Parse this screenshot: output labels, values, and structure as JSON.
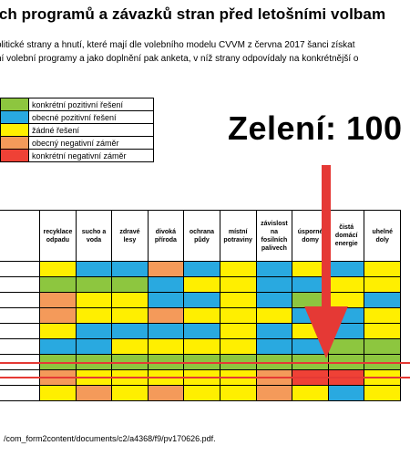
{
  "title": "ích programů a závazků stran před letošními volbam",
  "intro": [
    "olitické strany a hnutí, které mají dle volebního modelu CVVM z června 2017 šanci získat",
    "ní volební programy a jako doplnění pak anketa, v níž strany odpovídaly na konkrétnější o"
  ],
  "legend": [
    {
      "color": "#8dc63f",
      "label": "konkrétní pozitivní řešení"
    },
    {
      "color": "#29a9e0",
      "label": "obecné pozitivní řešení"
    },
    {
      "color": "#ffef00",
      "label": "žádné řešení"
    },
    {
      "color": "#f49a5a",
      "label": "obecný negativní záměr"
    },
    {
      "color": "#ef4136",
      "label": "konkrétní negativní záměr"
    }
  ],
  "caption": "Zelení: 100",
  "colors": {
    "G": "#8dc63f",
    "B": "#29a9e0",
    "Y": "#ffef00",
    "O": "#f49a5a",
    "R": "#ef4136",
    "accent": "#e53935"
  },
  "columns": [
    "recyklace odpadu",
    "sucho a voda",
    "zdravé lesy",
    "divoká příroda",
    "ochrana půdy",
    "místní potraviny",
    "závislost na fosilních palivech",
    "úsporné domy",
    "čistá domácí energie",
    "uhelné doly"
  ],
  "rows": [
    [
      "Y",
      "B",
      "B",
      "O",
      "B",
      "Y",
      "B",
      "Y",
      "B",
      "Y"
    ],
    [
      "G",
      "G",
      "G",
      "B",
      "Y",
      "Y",
      "B",
      "B",
      "Y",
      "Y"
    ],
    [
      "O",
      "Y",
      "Y",
      "B",
      "B",
      "Y",
      "B",
      "G",
      "Y",
      "B"
    ],
    [
      "O",
      "Y",
      "Y",
      "O",
      "Y",
      "Y",
      "Y",
      "B",
      "B",
      "Y"
    ],
    [
      "Y",
      "B",
      "B",
      "B",
      "B",
      "Y",
      "B",
      "Y",
      "B",
      "Y"
    ],
    [
      "B",
      "B",
      "Y",
      "Y",
      "Y",
      "Y",
      "B",
      "B",
      "G",
      "G"
    ],
    [
      "G",
      "G",
      "G",
      "G",
      "G",
      "G",
      "G",
      "G",
      "G",
      "G"
    ],
    [
      "O",
      "Y",
      "Y",
      "Y",
      "Y",
      "Y",
      "O",
      "R",
      "R",
      "Y"
    ],
    [
      "Y",
      "O",
      "Y",
      "O",
      "Y",
      "Y",
      "O",
      "Y",
      "B",
      "Y"
    ]
  ],
  "source": "/com_form2content/documents/c2/a4368/f9/pv170626.pdf."
}
